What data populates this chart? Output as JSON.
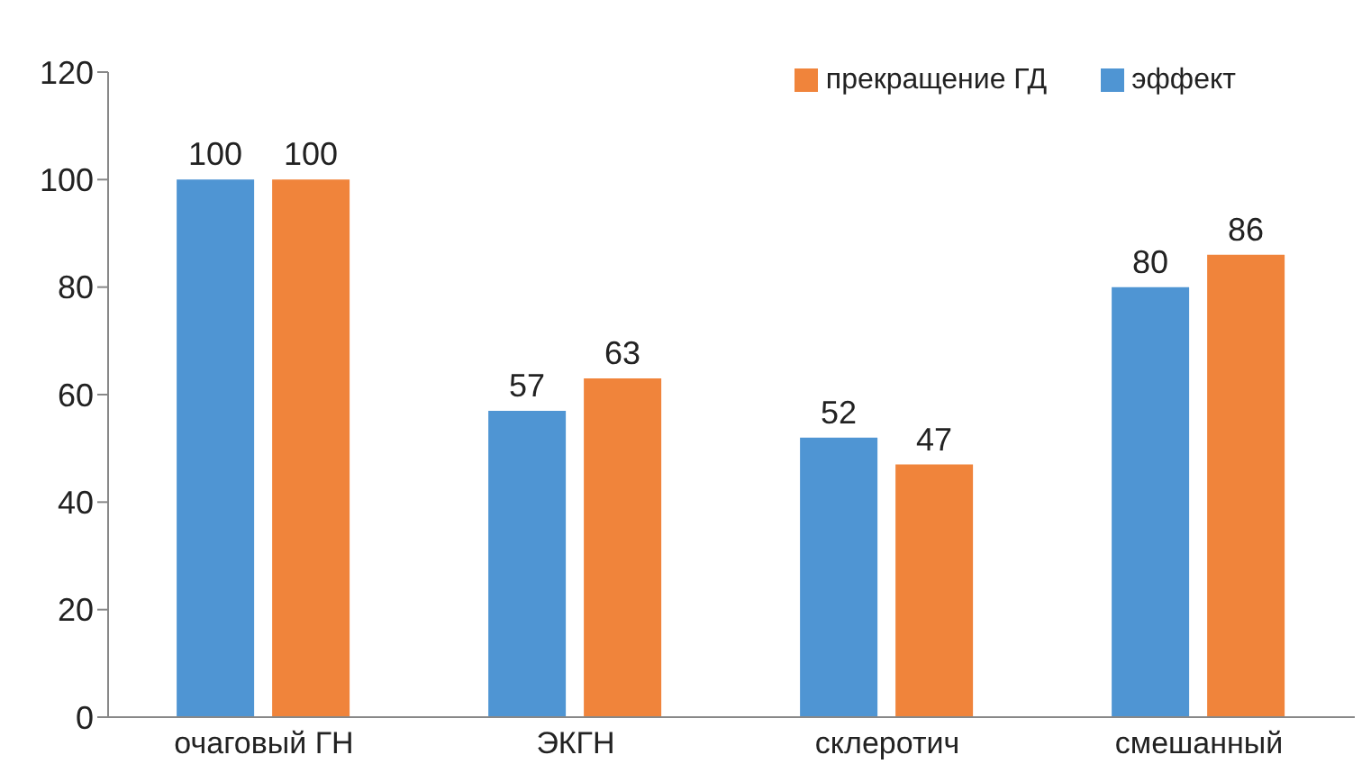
{
  "chart_data": {
    "type": "bar",
    "categories": [
      "очаговый ГН",
      "ЭКГН",
      "склеротич",
      "смешанный"
    ],
    "series": [
      {
        "name": "эффект",
        "color": "#4f95d3",
        "values": [
          100,
          57,
          52,
          80
        ]
      },
      {
        "name": "прекращение ГД",
        "color": "#f0843b",
        "values": [
          100,
          63,
          47,
          86
        ]
      }
    ],
    "ylim": [
      0,
      120
    ],
    "yticks": [
      0,
      20,
      40,
      60,
      80,
      100,
      120
    ],
    "data_labels": true,
    "legend": "top right"
  }
}
